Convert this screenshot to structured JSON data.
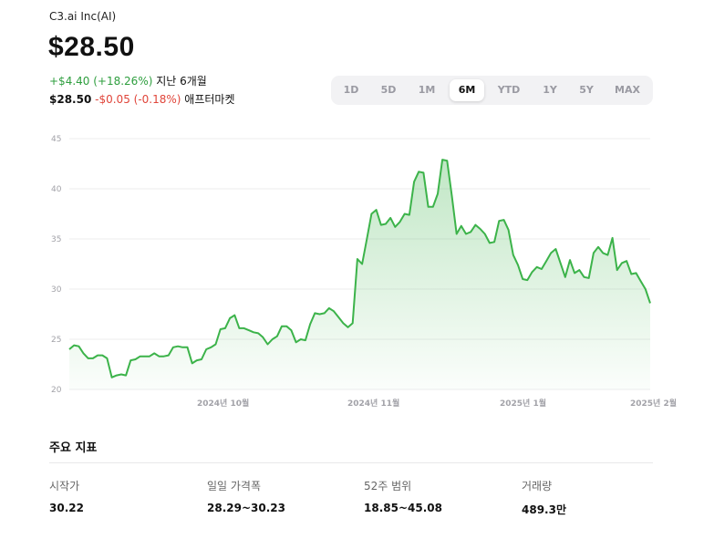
{
  "header": {
    "company": "C3.ai Inc(AI)",
    "price": "$28.50",
    "change": "+$4.40 (+18.26%)",
    "change_period": "지난 6개월",
    "after_price": "$28.50",
    "after_change": "-$0.05 (-0.18%)",
    "after_label": "애프터마켓"
  },
  "ranges": [
    "1D",
    "5D",
    "1M",
    "6M",
    "YTD",
    "1Y",
    "5Y",
    "MAX"
  ],
  "active_range": "6M",
  "colors": {
    "line": "#3cb34a",
    "positive": "#2e9e3e",
    "negative": "#e0453a"
  },
  "chart_data": {
    "type": "area",
    "x_ticks": [
      "2024년 10월",
      "2024년 11월",
      "2025년 1월",
      "2025년 2월"
    ],
    "y_ticks": [
      20,
      25,
      30,
      35,
      40,
      45
    ],
    "ylim": [
      20,
      45
    ],
    "grid": true,
    "values": [
      24.0,
      24.4,
      24.3,
      23.6,
      23.1,
      23.1,
      23.4,
      23.4,
      23.1,
      21.2,
      21.4,
      21.5,
      21.4,
      22.9,
      23.0,
      23.3,
      23.3,
      23.3,
      23.6,
      23.3,
      23.3,
      23.4,
      24.2,
      24.3,
      24.2,
      24.2,
      22.6,
      22.9,
      23.0,
      24.0,
      24.2,
      24.5,
      26.0,
      26.1,
      27.1,
      27.4,
      26.1,
      26.1,
      25.9,
      25.7,
      25.6,
      25.2,
      24.5,
      25.0,
      25.3,
      26.3,
      26.3,
      25.9,
      24.7,
      25.0,
      24.9,
      26.5,
      27.6,
      27.5,
      27.6,
      28.1,
      27.8,
      27.2,
      26.6,
      26.2,
      26.6,
      33.0,
      32.5,
      35.0,
      37.5,
      37.9,
      36.4,
      36.5,
      37.1,
      36.2,
      36.7,
      37.5,
      37.4,
      40.7,
      41.7,
      41.6,
      38.2,
      38.2,
      39.5,
      42.9,
      42.8,
      39.3,
      35.5,
      36.3,
      35.5,
      35.7,
      36.4,
      36.0,
      35.5,
      34.6,
      34.7,
      36.8,
      36.9,
      35.9,
      33.4,
      32.4,
      31.0,
      30.9,
      31.7,
      32.2,
      32.0,
      32.8,
      33.6,
      34.0,
      32.6,
      31.2,
      32.9,
      31.6,
      31.9,
      31.2,
      31.1,
      33.6,
      34.2,
      33.6,
      33.4,
      35.1,
      31.9,
      32.6,
      32.8,
      31.5,
      31.6,
      30.8,
      30.0,
      28.6
    ]
  },
  "stats": {
    "title": "주요 지표",
    "items": [
      {
        "label": "시작가",
        "value": "30.22"
      },
      {
        "label": "일일 가격폭",
        "value": "28.29~30.23"
      },
      {
        "label": "52주 범위",
        "value": "18.85~45.08"
      },
      {
        "label": "거래량",
        "value": "489.3만"
      }
    ]
  }
}
